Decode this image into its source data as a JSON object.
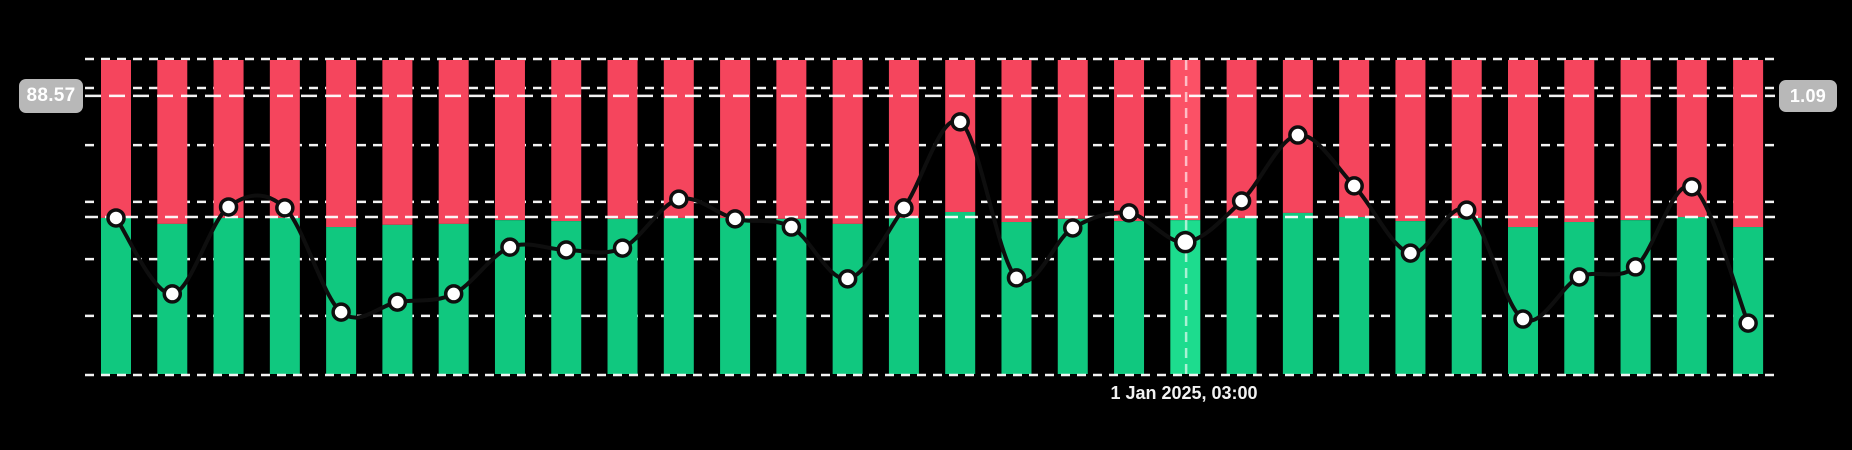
{
  "chart_data": {
    "type": "combo",
    "title": "",
    "xlabel": "",
    "ylabel": "",
    "x_count": 30,
    "ylim": [
      0,
      100
    ],
    "grid": "horizontal-dashed",
    "legend_position": "none",
    "series": [
      {
        "name": "green-red-percent-bars",
        "type": "stacked-bar-100",
        "description": "Each bar spans full plot height; green portion from bottom, red portion fills remainder to top",
        "green_pct": [
          49.7,
          47.8,
          49.7,
          49.7,
          46.8,
          47.5,
          47.8,
          49.0,
          48.7,
          49.4,
          49.7,
          49.7,
          49.4,
          47.8,
          49.7,
          51.6,
          48.4,
          49.4,
          48.7,
          49.0,
          49.7,
          51.3,
          50.0,
          48.7,
          49.7,
          46.8,
          48.4,
          49.0,
          50.0,
          46.8
        ]
      },
      {
        "name": "marker-line",
        "type": "line",
        "shape": "spline",
        "values": [
          49.7,
          25.5,
          53.2,
          52.9,
          19.7,
          22.9,
          25.5,
          40.4,
          39.5,
          40.1,
          55.7,
          49.4,
          46.8,
          30.3,
          52.9,
          80.3,
          30.6,
          46.5,
          51.3,
          42.0,
          55.1,
          76.1,
          59.9,
          38.5,
          52.2,
          17.5,
          30.9,
          34.1,
          59.6,
          16.2
        ]
      }
    ],
    "gridline_values": [
      91.1,
      72.9,
      54.8,
      36.6,
      18.5
    ],
    "border_values": [
      100,
      0
    ],
    "midline_value": 50,
    "price_line": {
      "value_on_scale": 88.57,
      "left_label": "88.57",
      "right_label": "1.09"
    },
    "crosshair": {
      "index": 20,
      "label": "1 Jan 2025, 03:00"
    }
  },
  "colors": {
    "background": "#000000",
    "bar_red": "#f5455d",
    "bar_green": "#10c87f",
    "bar_red_highlight": "#fb5166",
    "bar_green_highlight": "#1ddc8e",
    "line": "#0e0e0e",
    "marker_fill": "#ffffff",
    "marker_stroke": "#0e0e0e",
    "grid": "#ffffff",
    "crosshair": "#ffffff",
    "badge_bg": "#b8b8b8",
    "badge_text": "#ffffff",
    "date_text": "#f2f2f2"
  }
}
